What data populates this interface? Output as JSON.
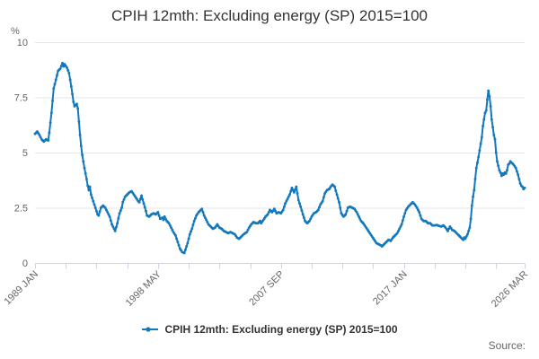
{
  "page_title": "CPIH 12mth: Excluding energy (SP) 2015=100",
  "footer": {
    "source_label": "Source:"
  },
  "colors": {
    "series_blue": "#1478bd",
    "gridline": "#e6e6e6",
    "axis_line": "#ccd6eb",
    "tick_text": "#666666",
    "title_text": "#333333"
  },
  "chart_data": {
    "type": "line",
    "title": "CPIH 12mth: Excluding energy (SP) 2015=100",
    "unit_label": "%",
    "ylabel": "%",
    "ylim": [
      0,
      10
    ],
    "y_ticks": [
      0,
      2.5,
      5,
      7.5,
      10
    ],
    "grid": "horizontal",
    "legend_position": "bottom-center",
    "x_axis": {
      "start_month": "1989 JAN",
      "end_month": "2026 MAR",
      "total_months": 446,
      "labeled_ticks": [
        {
          "month": 0,
          "label": "1989 JAN"
        },
        {
          "month": 112,
          "label": "1998 MAY"
        },
        {
          "month": 224,
          "label": "2007 SEP"
        },
        {
          "month": 336,
          "label": "2017 JAN"
        },
        {
          "month": 446,
          "label": "2026 MAR"
        }
      ],
      "tick_months": [
        0,
        28,
        56,
        84,
        112,
        140,
        168,
        196,
        224,
        252,
        280,
        308,
        336,
        364,
        392,
        420,
        446
      ]
    },
    "series": [
      {
        "name": "CPIH 12mth: Excluding energy (SP) 2015=100",
        "color": "#1478bd",
        "points_format": "[month_index_from_1989_JAN, percent]",
        "points": [
          [
            0,
            5.85
          ],
          [
            2,
            5.95
          ],
          [
            4,
            5.8
          ],
          [
            6,
            5.6
          ],
          [
            8,
            5.5
          ],
          [
            10,
            5.6
          ],
          [
            12,
            5.55
          ],
          [
            13,
            5.9
          ],
          [
            15,
            6.8
          ],
          [
            17,
            7.9
          ],
          [
            19,
            8.3
          ],
          [
            21,
            8.7
          ],
          [
            23,
            8.8
          ],
          [
            25,
            9.05
          ],
          [
            26,
            8.9
          ],
          [
            27,
            9.0
          ],
          [
            29,
            8.85
          ],
          [
            31,
            8.6
          ],
          [
            33,
            8.0
          ],
          [
            35,
            7.3
          ],
          [
            36,
            7.1
          ],
          [
            38,
            7.2
          ],
          [
            39,
            7.0
          ],
          [
            40,
            6.4
          ],
          [
            41,
            5.8
          ],
          [
            42,
            5.3
          ],
          [
            43,
            4.9
          ],
          [
            45,
            4.3
          ],
          [
            47,
            3.8
          ],
          [
            48,
            3.5
          ],
          [
            49,
            3.3
          ],
          [
            50,
            3.45
          ],
          [
            51,
            3.1
          ],
          [
            53,
            2.8
          ],
          [
            55,
            2.5
          ],
          [
            57,
            2.2
          ],
          [
            58,
            2.15
          ],
          [
            60,
            2.5
          ],
          [
            62,
            2.6
          ],
          [
            64,
            2.5
          ],
          [
            66,
            2.3
          ],
          [
            68,
            2.1
          ],
          [
            70,
            1.75
          ],
          [
            72,
            1.55
          ],
          [
            73,
            1.45
          ],
          [
            75,
            1.8
          ],
          [
            77,
            2.25
          ],
          [
            79,
            2.5
          ],
          [
            80,
            2.75
          ],
          [
            82,
            3.0
          ],
          [
            84,
            3.1
          ],
          [
            86,
            3.2
          ],
          [
            88,
            3.25
          ],
          [
            90,
            3.1
          ],
          [
            92,
            2.95
          ],
          [
            94,
            2.8
          ],
          [
            95,
            2.75
          ],
          [
            97,
            3.05
          ],
          [
            99,
            2.7
          ],
          [
            101,
            2.35
          ],
          [
            102,
            2.15
          ],
          [
            104,
            2.1
          ],
          [
            106,
            2.2
          ],
          [
            108,
            2.25
          ],
          [
            110,
            2.2
          ],
          [
            112,
            2.3
          ],
          [
            114,
            2.0
          ],
          [
            116,
            2.05
          ],
          [
            117,
            1.95
          ],
          [
            118,
            2.1
          ],
          [
            120,
            1.9
          ],
          [
            122,
            1.8
          ],
          [
            124,
            1.6
          ],
          [
            126,
            1.4
          ],
          [
            128,
            1.25
          ],
          [
            130,
            0.95
          ],
          [
            132,
            0.65
          ],
          [
            134,
            0.5
          ],
          [
            136,
            0.45
          ],
          [
            137,
            0.6
          ],
          [
            139,
            0.9
          ],
          [
            141,
            1.3
          ],
          [
            143,
            1.55
          ],
          [
            145,
            1.9
          ],
          [
            147,
            2.15
          ],
          [
            149,
            2.3
          ],
          [
            151,
            2.4
          ],
          [
            152,
            2.45
          ],
          [
            154,
            2.15
          ],
          [
            156,
            1.95
          ],
          [
            158,
            1.75
          ],
          [
            160,
            1.65
          ],
          [
            162,
            1.55
          ],
          [
            164,
            1.6
          ],
          [
            166,
            1.75
          ],
          [
            168,
            1.6
          ],
          [
            170,
            1.55
          ],
          [
            172,
            1.45
          ],
          [
            174,
            1.4
          ],
          [
            176,
            1.35
          ],
          [
            178,
            1.4
          ],
          [
            180,
            1.35
          ],
          [
            182,
            1.3
          ],
          [
            184,
            1.15
          ],
          [
            186,
            1.1
          ],
          [
            188,
            1.2
          ],
          [
            190,
            1.3
          ],
          [
            193,
            1.4
          ],
          [
            195,
            1.6
          ],
          [
            197,
            1.75
          ],
          [
            199,
            1.85
          ],
          [
            201,
            1.8
          ],
          [
            203,
            1.8
          ],
          [
            205,
            1.9
          ],
          [
            206,
            1.8
          ],
          [
            208,
            1.95
          ],
          [
            210,
            2.1
          ],
          [
            212,
            2.2
          ],
          [
            214,
            2.4
          ],
          [
            216,
            2.3
          ],
          [
            218,
            2.45
          ],
          [
            220,
            2.25
          ],
          [
            222,
            2.3
          ],
          [
            224,
            2.25
          ],
          [
            226,
            2.4
          ],
          [
            228,
            2.7
          ],
          [
            230,
            2.9
          ],
          [
            232,
            3.1
          ],
          [
            234,
            3.4
          ],
          [
            236,
            3.2
          ],
          [
            238,
            3.45
          ],
          [
            240,
            2.85
          ],
          [
            242,
            2.55
          ],
          [
            244,
            2.2
          ],
          [
            246,
            1.9
          ],
          [
            248,
            1.8
          ],
          [
            250,
            1.9
          ],
          [
            252,
            2.1
          ],
          [
            254,
            2.25
          ],
          [
            256,
            2.3
          ],
          [
            258,
            2.4
          ],
          [
            260,
            2.65
          ],
          [
            262,
            2.8
          ],
          [
            264,
            3.15
          ],
          [
            266,
            3.3
          ],
          [
            268,
            3.35
          ],
          [
            270,
            3.5
          ],
          [
            271,
            3.55
          ],
          [
            273,
            3.45
          ],
          [
            275,
            3.1
          ],
          [
            277,
            2.75
          ],
          [
            279,
            2.25
          ],
          [
            281,
            2.1
          ],
          [
            283,
            2.2
          ],
          [
            285,
            2.5
          ],
          [
            287,
            2.55
          ],
          [
            289,
            2.5
          ],
          [
            291,
            2.45
          ],
          [
            293,
            2.3
          ],
          [
            295,
            2.1
          ],
          [
            297,
            1.9
          ],
          [
            299,
            1.8
          ],
          [
            301,
            1.65
          ],
          [
            303,
            1.5
          ],
          [
            305,
            1.35
          ],
          [
            307,
            1.2
          ],
          [
            309,
            1.05
          ],
          [
            311,
            0.9
          ],
          [
            313,
            0.85
          ],
          [
            315,
            0.8
          ],
          [
            316,
            0.75
          ],
          [
            318,
            0.85
          ],
          [
            320,
            0.95
          ],
          [
            322,
            1.05
          ],
          [
            324,
            1.0
          ],
          [
            326,
            1.15
          ],
          [
            328,
            1.25
          ],
          [
            330,
            1.35
          ],
          [
            332,
            1.55
          ],
          [
            334,
            1.75
          ],
          [
            336,
            2.1
          ],
          [
            338,
            2.4
          ],
          [
            340,
            2.55
          ],
          [
            342,
            2.65
          ],
          [
            344,
            2.75
          ],
          [
            346,
            2.65
          ],
          [
            348,
            2.5
          ],
          [
            350,
            2.3
          ],
          [
            352,
            2.0
          ],
          [
            354,
            1.9
          ],
          [
            356,
            1.9
          ],
          [
            358,
            1.8
          ],
          [
            360,
            1.8
          ],
          [
            362,
            1.7
          ],
          [
            364,
            1.7
          ],
          [
            366,
            1.72
          ],
          [
            368,
            1.68
          ],
          [
            370,
            1.65
          ],
          [
            372,
            1.7
          ],
          [
            374,
            1.6
          ],
          [
            376,
            1.45
          ],
          [
            378,
            1.65
          ],
          [
            380,
            1.5
          ],
          [
            382,
            1.45
          ],
          [
            384,
            1.35
          ],
          [
            386,
            1.25
          ],
          [
            388,
            1.15
          ],
          [
            390,
            1.05
          ],
          [
            391,
            1.15
          ],
          [
            392,
            1.1
          ],
          [
            394,
            1.3
          ],
          [
            396,
            1.6
          ],
          [
            397,
            2.0
          ],
          [
            398,
            2.6
          ],
          [
            399,
            3.0
          ],
          [
            400,
            3.3
          ],
          [
            401,
            3.8
          ],
          [
            402,
            4.3
          ],
          [
            404,
            4.8
          ],
          [
            405,
            5.1
          ],
          [
            407,
            5.7
          ],
          [
            408,
            6.2
          ],
          [
            410,
            6.8
          ],
          [
            411,
            6.9
          ],
          [
            412,
            7.4
          ],
          [
            413,
            7.8
          ],
          [
            414,
            7.55
          ],
          [
            415,
            7.1
          ],
          [
            416,
            6.5
          ],
          [
            418,
            5.8
          ],
          [
            419,
            5.6
          ],
          [
            420,
            5.0
          ],
          [
            421,
            4.6
          ],
          [
            423,
            4.2
          ],
          [
            424,
            4.1
          ],
          [
            425,
            3.95
          ],
          [
            426,
            4.05
          ],
          [
            427,
            4.0
          ],
          [
            428,
            4.1
          ],
          [
            429,
            4.05
          ],
          [
            430,
            4.2
          ],
          [
            431,
            4.45
          ],
          [
            432,
            4.5
          ],
          [
            433,
            4.6
          ],
          [
            434,
            4.55
          ],
          [
            436,
            4.45
          ],
          [
            438,
            4.3
          ],
          [
            440,
            4.0
          ],
          [
            441,
            3.8
          ],
          [
            442,
            3.6
          ],
          [
            443,
            3.5
          ],
          [
            444,
            3.45
          ],
          [
            445,
            3.35
          ],
          [
            446,
            3.4
          ]
        ]
      }
    ]
  }
}
